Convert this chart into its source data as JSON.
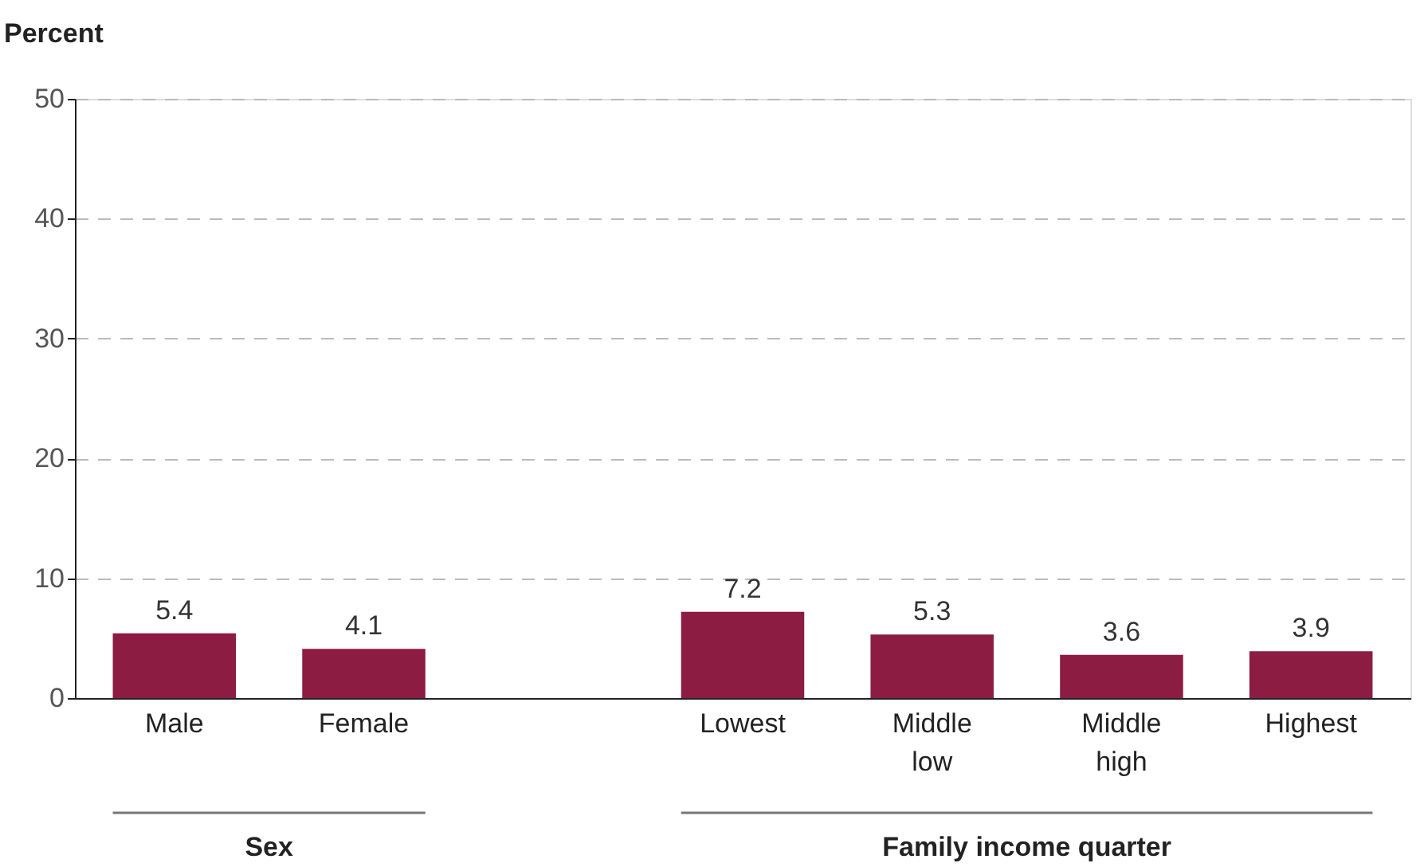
{
  "chart_data": {
    "type": "bar",
    "ylabel": "Percent",
    "categories": [
      "Male",
      "Female",
      null,
      "Lowest",
      "Middle low",
      "Middle high",
      "Highest"
    ],
    "values": [
      5.4,
      4.1,
      null,
      7.2,
      5.3,
      3.6,
      3.9
    ],
    "color": "#8c1c42",
    "data_labels": true,
    "ylim": [
      0,
      50
    ],
    "yticks": [
      0,
      10,
      20,
      30,
      40,
      50
    ],
    "grid": "y",
    "line_style": "dashed",
    "annotations": [
      "Sex",
      "Family income quarter"
    ]
  }
}
